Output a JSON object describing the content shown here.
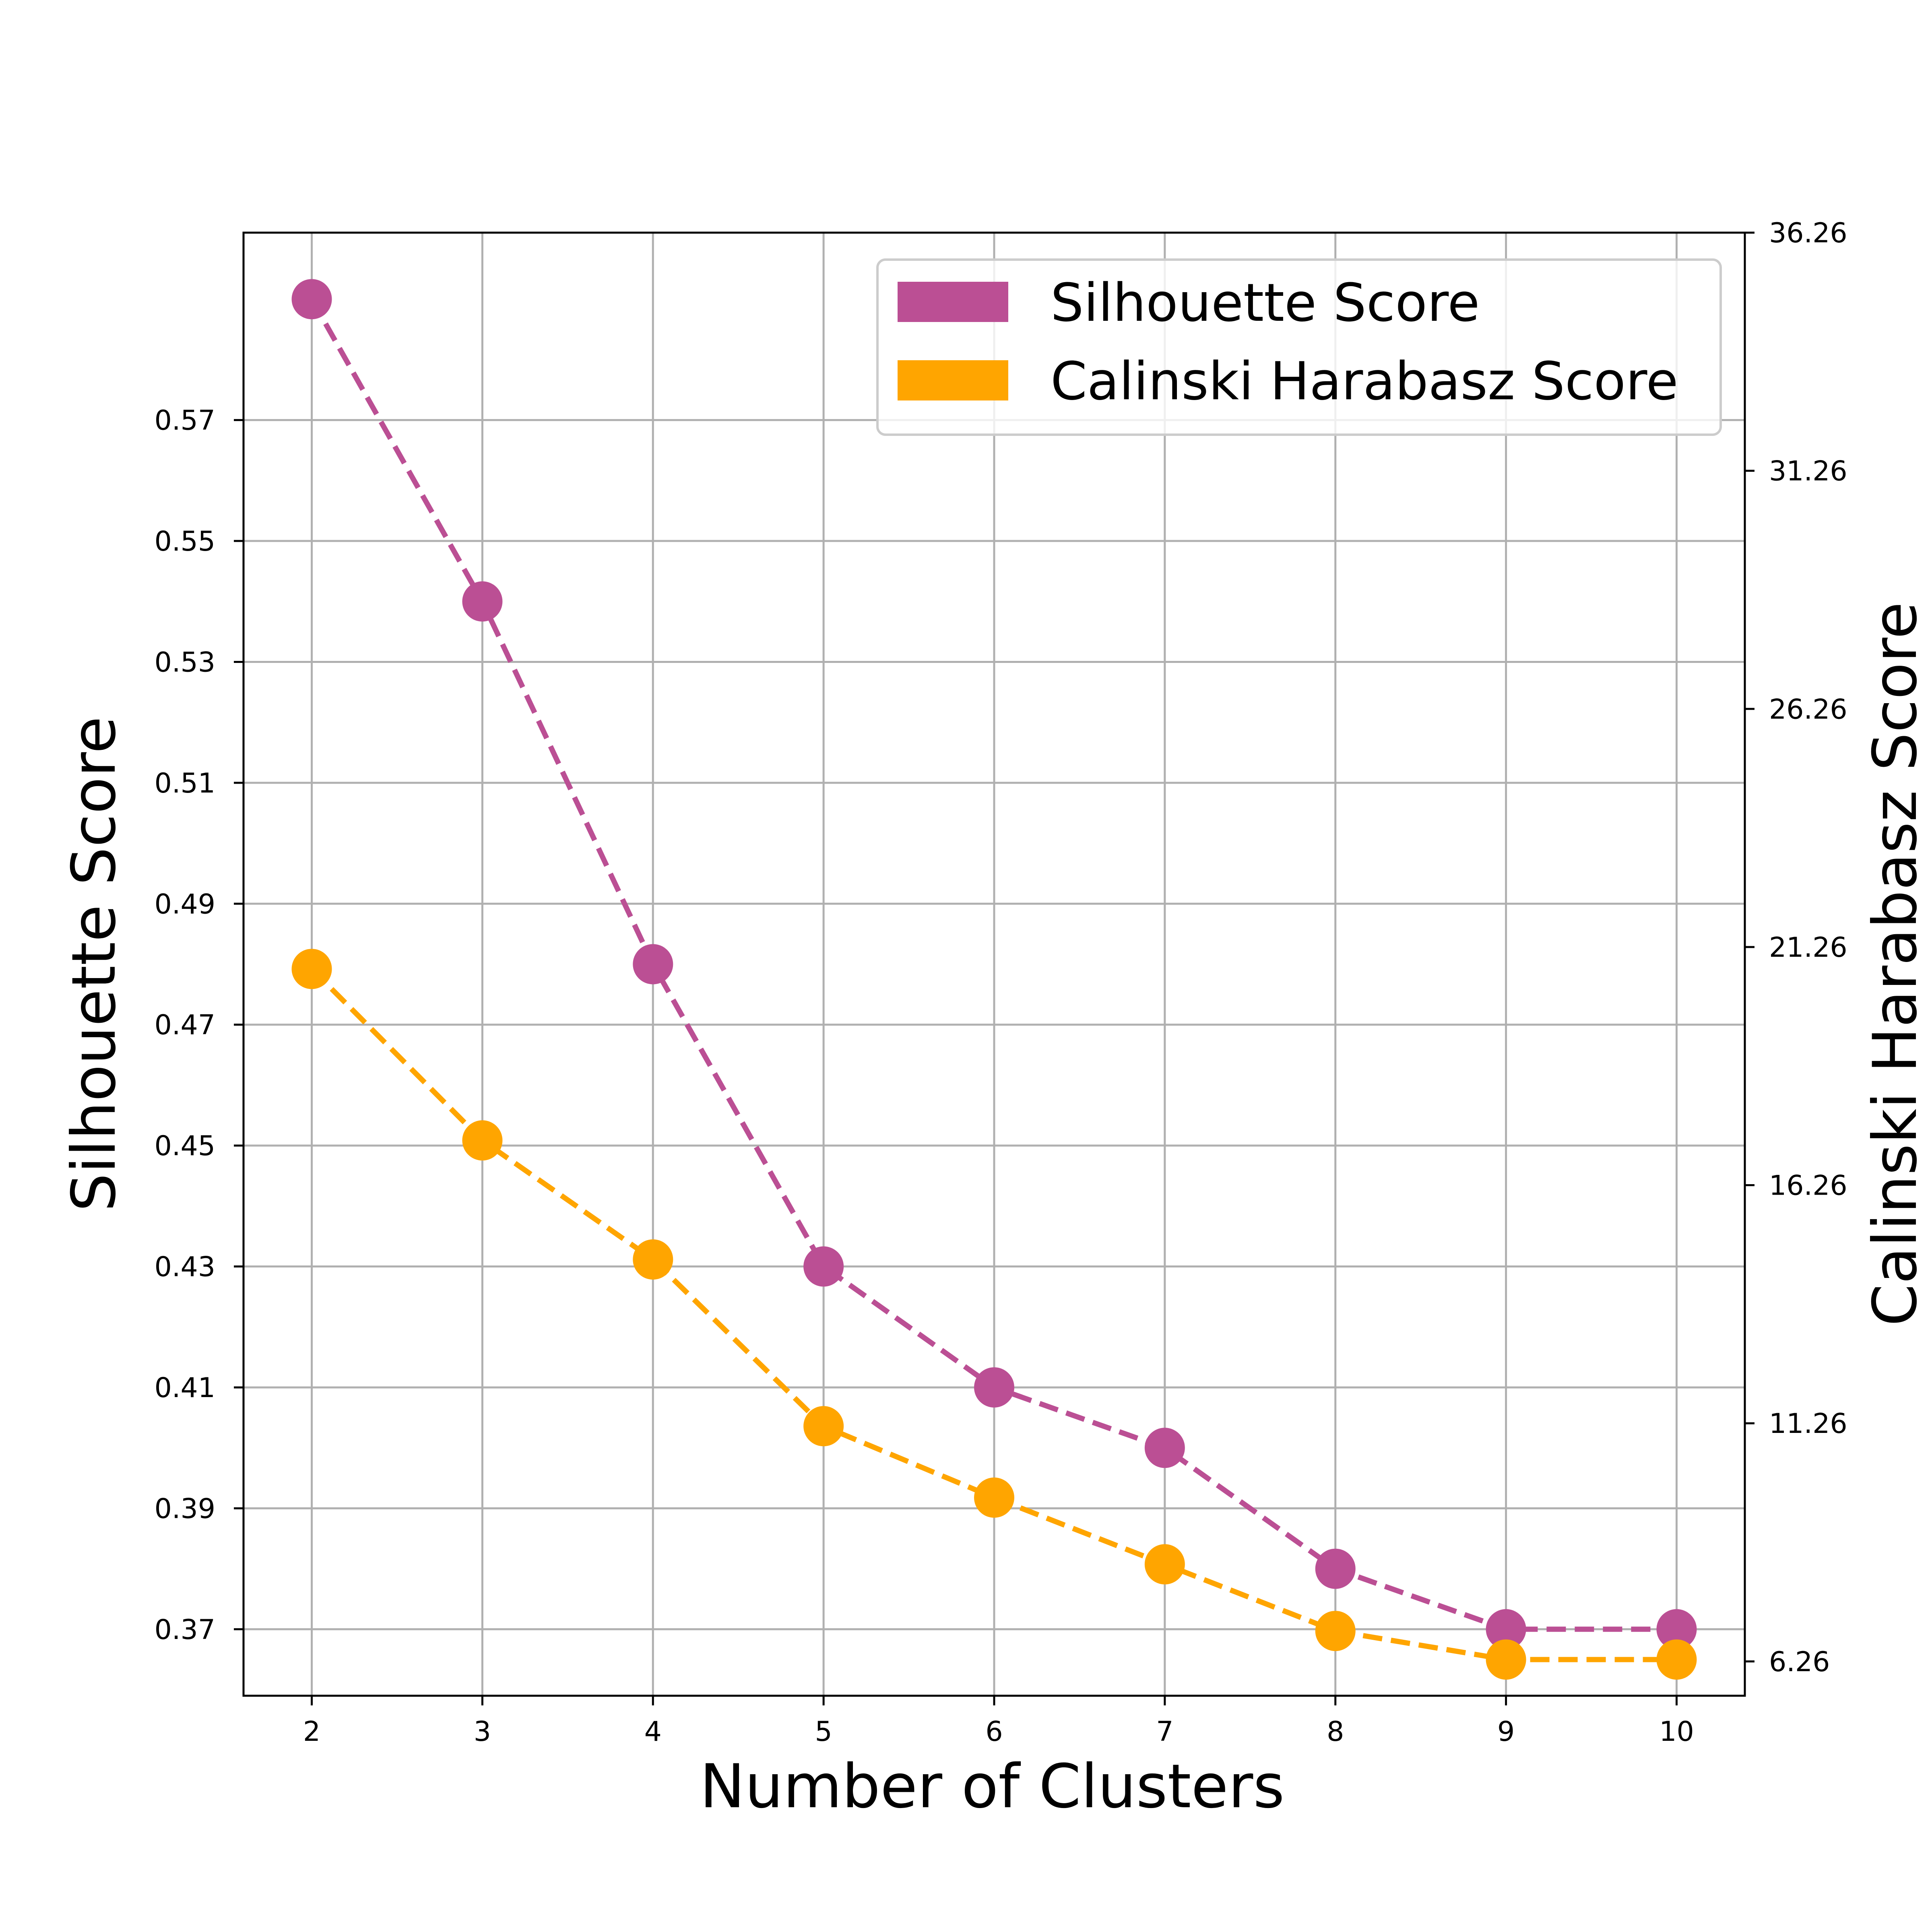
{
  "chart_data": {
    "type": "line",
    "xlabel": "Number of Clusters",
    "ylabel": "Silhouette Score",
    "y2label": "Calinski Harabasz Score",
    "x": [
      2,
      3,
      4,
      5,
      6,
      7,
      8,
      9,
      10
    ],
    "xlim": [
      1.6,
      10.4
    ],
    "ylim": [
      0.359,
      0.601
    ],
    "y2lim": [
      5.54,
      36.26
    ],
    "yticks": [
      "0.37",
      "0.39",
      "0.41",
      "0.43",
      "0.45",
      "0.47",
      "0.49",
      "0.51",
      "0.53",
      "0.55",
      "0.57"
    ],
    "y2ticks": [
      "6.26",
      "11.26",
      "16.26",
      "21.26",
      "26.26",
      "31.26",
      "36.26"
    ],
    "grid": true,
    "legend_position": "top-right",
    "series": [
      {
        "name": "Silhouette Score",
        "axis": "left",
        "color": "#bb4f94",
        "values": [
          0.59,
          0.54,
          0.48,
          0.43,
          0.41,
          0.4,
          0.38,
          0.37,
          0.37
        ]
      },
      {
        "name": "Calinski Harabasz Score",
        "axis": "right",
        "color": "#ffa500",
        "values": [
          20.8,
          17.2,
          14.7,
          11.2,
          9.7,
          8.3,
          6.9,
          6.3,
          6.3
        ]
      }
    ]
  }
}
